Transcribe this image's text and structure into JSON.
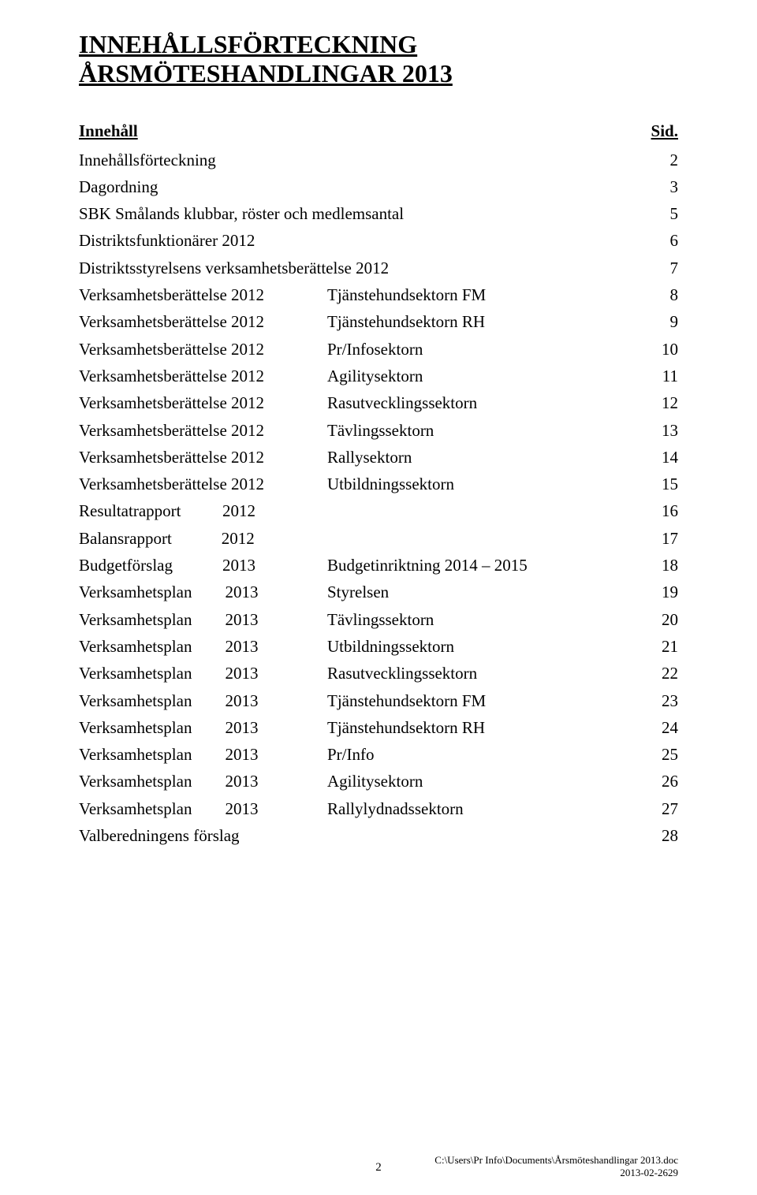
{
  "title_line1": "INNEHÅLLSFÖRTECKNING",
  "title_line2": "ÅRSMÖTESHANDLINGAR 2013",
  "header_left": "Innehåll",
  "header_right": "Sid.",
  "rows": [
    {
      "left": "Innehållsförteckning",
      "mid": "",
      "page": "2"
    },
    {
      "left": "Dagordning",
      "mid": "",
      "page": "3"
    },
    {
      "left": "SBK Smålands klubbar, röster och medlemsantal",
      "mid": "",
      "page": "5"
    },
    {
      "left": "Distriktsfunktionärer 2012",
      "mid": "",
      "page": "6"
    },
    {
      "left": "Distriktsstyrelsens verksamhetsberättelse 2012",
      "mid": "",
      "page": "7"
    },
    {
      "left": "Verksamhetsberättelse 2012",
      "mid": "Tjänstehundsektorn FM",
      "page": "8"
    },
    {
      "left": "Verksamhetsberättelse 2012",
      "mid": "Tjänstehundsektorn RH",
      "page": "9"
    },
    {
      "left": "Verksamhetsberättelse 2012",
      "mid": "Pr/Infosektorn",
      "page": "10"
    },
    {
      "left": "Verksamhetsberättelse 2012",
      "mid": "Agilitysektorn",
      "page": "11"
    },
    {
      "left": "Verksamhetsberättelse 2012",
      "mid": "Rasutvecklingssektorn",
      "page": "12"
    },
    {
      "left": "Verksamhetsberättelse 2012",
      "mid": "Tävlingssektorn",
      "page": "13"
    },
    {
      "left": "Verksamhetsberättelse 2012",
      "mid": "Rallysektorn",
      "page": "14"
    },
    {
      "left": "Verksamhetsberättelse 2012",
      "mid": "Utbildningssektorn",
      "page": "15"
    },
    {
      "left": "Resultatrapport          2012",
      "mid": "",
      "page": "16"
    },
    {
      "left": "Balansrapport            2012",
      "mid": "",
      "page": "17"
    },
    {
      "left": "Budgetförslag            2013",
      "mid": "Budgetinriktning 2014 – 2015",
      "page": "18"
    },
    {
      "left": "Verksamhetsplan        2013",
      "mid": "Styrelsen",
      "page": "19"
    },
    {
      "left": "Verksamhetsplan        2013",
      "mid": "Tävlingssektorn",
      "page": "20"
    },
    {
      "left": "Verksamhetsplan        2013",
      "mid": "Utbildningssektorn",
      "page": "21"
    },
    {
      "left": "Verksamhetsplan        2013",
      "mid": "Rasutvecklingssektorn",
      "page": "22"
    },
    {
      "left": "Verksamhetsplan        2013",
      "mid": "Tjänstehundsektorn FM",
      "page": "23"
    },
    {
      "left": "Verksamhetsplan        2013",
      "mid": "Tjänstehundsektorn RH",
      "page": "24"
    },
    {
      "left": "Verksamhetsplan        2013",
      "mid": "Pr/Info",
      "page": "25"
    },
    {
      "left": "Verksamhetsplan        2013",
      "mid": "Agilitysektorn",
      "page": "26"
    },
    {
      "left": "Verksamhetsplan        2013",
      "mid": "Rallylydnadssektorn",
      "page": "27"
    },
    {
      "left": "Valberedningens förslag",
      "mid": "",
      "page": "28"
    }
  ],
  "footer": {
    "page_number": "2",
    "path": "C:\\Users\\Pr Info\\Documents\\Årsmöteshandlingar 2013.doc",
    "date": "2013-02-2629"
  }
}
